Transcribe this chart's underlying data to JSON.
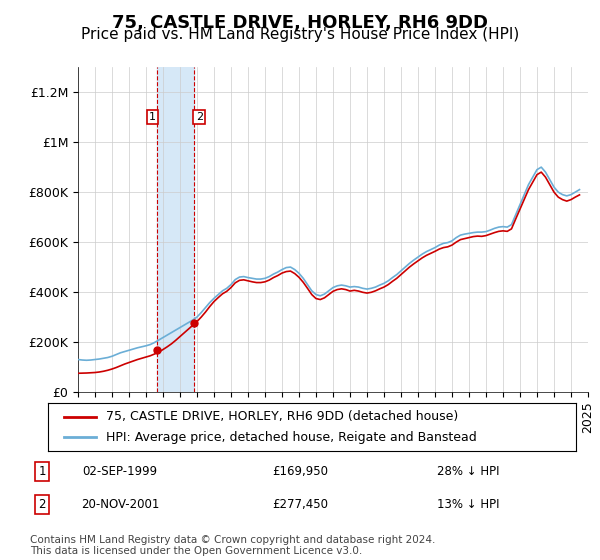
{
  "title": "75, CASTLE DRIVE, HORLEY, RH6 9DD",
  "subtitle": "Price paid vs. HM Land Registry's House Price Index (HPI)",
  "ylabel": "",
  "xlabel": "",
  "ylim": [
    0,
    1300000
  ],
  "yticks": [
    0,
    200000,
    400000,
    600000,
    800000,
    1000000,
    1200000
  ],
  "ytick_labels": [
    "£0",
    "£200K",
    "£400K",
    "£600K",
    "£800K",
    "£1M",
    "£1.2M"
  ],
  "x_start_year": 1995,
  "x_end_year": 2025,
  "sale1_date": "02-SEP-1999",
  "sale1_price": 169950,
  "sale1_hpi_pct": "28% ↓ HPI",
  "sale2_date": "20-NOV-2001",
  "sale2_price": 277450,
  "sale2_hpi_pct": "13% ↓ HPI",
  "legend_line1": "75, CASTLE DRIVE, HORLEY, RH6 9DD (detached house)",
  "legend_line2": "HPI: Average price, detached house, Reigate and Banstead",
  "footnote": "Contains HM Land Registry data © Crown copyright and database right 2024.\nThis data is licensed under the Open Government Licence v3.0.",
  "hpi_color": "#6baed6",
  "sale_color": "#cc0000",
  "highlight_color": "#d6e8f7",
  "highlight_border": "#cc0000",
  "grid_color": "#cccccc",
  "background_color": "#ffffff",
  "title_fontsize": 13,
  "subtitle_fontsize": 11,
  "tick_fontsize": 9,
  "legend_fontsize": 9,
  "footnote_fontsize": 7.5,
  "hpi_data_x": [
    1995.0,
    1995.25,
    1995.5,
    1995.75,
    1996.0,
    1996.25,
    1996.5,
    1996.75,
    1997.0,
    1997.25,
    1997.5,
    1997.75,
    1998.0,
    1998.25,
    1998.5,
    1998.75,
    1999.0,
    1999.25,
    1999.5,
    1999.75,
    2000.0,
    2000.25,
    2000.5,
    2000.75,
    2001.0,
    2001.25,
    2001.5,
    2001.75,
    2002.0,
    2002.25,
    2002.5,
    2002.75,
    2003.0,
    2003.25,
    2003.5,
    2003.75,
    2004.0,
    2004.25,
    2004.5,
    2004.75,
    2005.0,
    2005.25,
    2005.5,
    2005.75,
    2006.0,
    2006.25,
    2006.5,
    2006.75,
    2007.0,
    2007.25,
    2007.5,
    2007.75,
    2008.0,
    2008.25,
    2008.5,
    2008.75,
    2009.0,
    2009.25,
    2009.5,
    2009.75,
    2010.0,
    2010.25,
    2010.5,
    2010.75,
    2011.0,
    2011.25,
    2011.5,
    2011.75,
    2012.0,
    2012.25,
    2012.5,
    2012.75,
    2013.0,
    2013.25,
    2013.5,
    2013.75,
    2014.0,
    2014.25,
    2014.5,
    2014.75,
    2015.0,
    2015.25,
    2015.5,
    2015.75,
    2016.0,
    2016.25,
    2016.5,
    2016.75,
    2017.0,
    2017.25,
    2017.5,
    2017.75,
    2018.0,
    2018.25,
    2018.5,
    2018.75,
    2019.0,
    2019.25,
    2019.5,
    2019.75,
    2020.0,
    2020.25,
    2020.5,
    2020.75,
    2021.0,
    2021.25,
    2021.5,
    2021.75,
    2022.0,
    2022.25,
    2022.5,
    2022.75,
    2023.0,
    2023.25,
    2023.5,
    2023.75,
    2024.0,
    2024.25,
    2024.5
  ],
  "hpi_data_y": [
    130000,
    128000,
    127000,
    128000,
    130000,
    132000,
    135000,
    138000,
    143000,
    150000,
    157000,
    162000,
    167000,
    172000,
    177000,
    181000,
    185000,
    190000,
    198000,
    208000,
    218000,
    228000,
    238000,
    248000,
    258000,
    268000,
    278000,
    288000,
    300000,
    318000,
    338000,
    358000,
    375000,
    390000,
    405000,
    415000,
    430000,
    450000,
    460000,
    462000,
    458000,
    455000,
    452000,
    452000,
    455000,
    462000,
    472000,
    480000,
    490000,
    498000,
    500000,
    490000,
    475000,
    455000,
    430000,
    405000,
    390000,
    385000,
    392000,
    405000,
    418000,
    425000,
    428000,
    425000,
    420000,
    422000,
    420000,
    415000,
    412000,
    415000,
    420000,
    428000,
    435000,
    445000,
    458000,
    470000,
    485000,
    500000,
    515000,
    528000,
    540000,
    552000,
    562000,
    570000,
    578000,
    588000,
    595000,
    598000,
    605000,
    618000,
    628000,
    632000,
    635000,
    638000,
    640000,
    640000,
    642000,
    648000,
    655000,
    660000,
    662000,
    660000,
    670000,
    710000,
    750000,
    790000,
    830000,
    860000,
    890000,
    900000,
    880000,
    850000,
    820000,
    800000,
    790000,
    785000,
    790000,
    800000,
    810000
  ],
  "sale_data_x": [
    1995.0,
    1995.25,
    1995.5,
    1995.75,
    1996.0,
    1996.25,
    1996.5,
    1996.75,
    1997.0,
    1997.25,
    1997.5,
    1997.75,
    1998.0,
    1998.25,
    1998.5,
    1998.75,
    1999.0,
    1999.25,
    1999.5,
    1999.75,
    2000.0,
    2000.25,
    2000.5,
    2000.75,
    2001.0,
    2001.25,
    2001.5,
    2001.75,
    2002.0,
    2002.25,
    2002.5,
    2002.75,
    2003.0,
    2003.25,
    2003.5,
    2003.75,
    2004.0,
    2004.25,
    2004.5,
    2004.75,
    2005.0,
    2005.25,
    2005.5,
    2005.75,
    2006.0,
    2006.25,
    2006.5,
    2006.75,
    2007.0,
    2007.25,
    2007.5,
    2007.75,
    2008.0,
    2008.25,
    2008.5,
    2008.75,
    2009.0,
    2009.25,
    2009.5,
    2009.75,
    2010.0,
    2010.25,
    2010.5,
    2010.75,
    2011.0,
    2011.25,
    2011.5,
    2011.75,
    2012.0,
    2012.25,
    2012.5,
    2012.75,
    2013.0,
    2013.25,
    2013.5,
    2013.75,
    2014.0,
    2014.25,
    2014.5,
    2014.75,
    2015.0,
    2015.25,
    2015.5,
    2015.75,
    2016.0,
    2016.25,
    2016.5,
    2016.75,
    2017.0,
    2017.25,
    2017.5,
    2017.75,
    2018.0,
    2018.25,
    2018.5,
    2018.75,
    2019.0,
    2019.25,
    2019.5,
    2019.75,
    2020.0,
    2020.25,
    2020.5,
    2020.75,
    2021.0,
    2021.25,
    2021.5,
    2021.75,
    2022.0,
    2022.25,
    2022.5,
    2022.75,
    2023.0,
    2023.25,
    2023.5,
    2023.75,
    2024.0,
    2024.25,
    2024.5
  ],
  "sale_data_y": [
    75000,
    75500,
    76000,
    77000,
    78000,
    80000,
    83000,
    87000,
    92000,
    98000,
    105000,
    112000,
    118000,
    124000,
    130000,
    135000,
    140000,
    145000,
    152000,
    160000,
    170000,
    181000,
    193000,
    207000,
    222000,
    237000,
    252000,
    267000,
    282000,
    300000,
    320000,
    342000,
    362000,
    378000,
    393000,
    403000,
    418000,
    437000,
    447000,
    449000,
    445000,
    441000,
    438000,
    438000,
    441000,
    448000,
    458000,
    466000,
    476000,
    482000,
    484000,
    474000,
    459000,
    439000,
    415000,
    390000,
    374000,
    370000,
    377000,
    390000,
    403000,
    410000,
    413000,
    410000,
    404000,
    407000,
    404000,
    399000,
    396000,
    399000,
    405000,
    413000,
    420000,
    430000,
    443000,
    455000,
    470000,
    485000,
    500000,
    513000,
    525000,
    537000,
    547000,
    555000,
    563000,
    572000,
    578000,
    581000,
    588000,
    600000,
    610000,
    614000,
    618000,
    622000,
    624000,
    623000,
    626000,
    632000,
    638000,
    643000,
    645000,
    643000,
    653000,
    693000,
    732000,
    771000,
    810000,
    840000,
    870000,
    880000,
    860000,
    830000,
    800000,
    780000,
    770000,
    764000,
    770000,
    780000,
    789000
  ]
}
